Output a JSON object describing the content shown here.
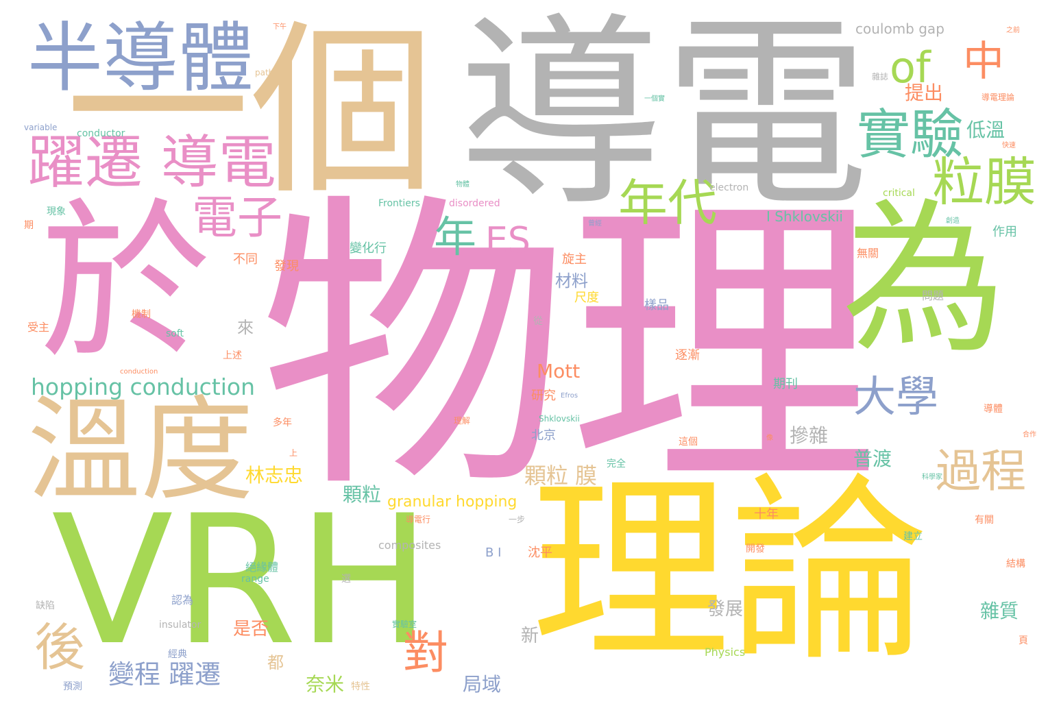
{
  "colors": {
    "background": "#ffffff",
    "pink": "#e98fc6",
    "green": "#a6d854",
    "yellow": "#ffd92f",
    "tan": "#e5c494",
    "gray": "#b3b3b3",
    "blue": "#8da0cb",
    "teal": "#66c2a5",
    "orange": "#fc8d62"
  },
  "words": [
    {
      "text": "物理",
      "color": "pink"
    },
    {
      "text": "導電",
      "color": "gray"
    },
    {
      "text": "一個",
      "color": "tan"
    },
    {
      "text": "VRH",
      "color": "green"
    },
    {
      "text": "於",
      "color": "pink"
    },
    {
      "text": "為",
      "color": "green"
    },
    {
      "text": "理論",
      "color": "yellow"
    },
    {
      "text": "溫度",
      "color": "tan"
    },
    {
      "text": "半導體",
      "color": "blue"
    },
    {
      "text": "躍遷 導電",
      "color": "pink"
    },
    {
      "text": "電子",
      "color": "pink"
    },
    {
      "text": "實驗",
      "color": "teal"
    },
    {
      "text": "粒膜",
      "color": "green"
    },
    {
      "text": "of",
      "color": "green"
    },
    {
      "text": "中",
      "color": "orange"
    },
    {
      "text": "年代",
      "color": "green"
    },
    {
      "text": "年",
      "color": "teal"
    },
    {
      "text": "ES",
      "color": "pink"
    },
    {
      "text": "大學",
      "color": "blue"
    },
    {
      "text": "過程",
      "color": "tan"
    },
    {
      "text": "後",
      "color": "tan"
    },
    {
      "text": "對",
      "color": "orange"
    },
    {
      "text": "變程 躍遷",
      "color": "blue"
    },
    {
      "text": "hopping conduction",
      "color": "teal"
    },
    {
      "text": "Mott",
      "color": "orange"
    },
    {
      "text": "顆粒 膜",
      "color": "tan"
    },
    {
      "text": "granular hopping",
      "color": "yellow"
    },
    {
      "text": "I Shklovskii",
      "color": "teal"
    },
    {
      "text": "coulomb gap",
      "color": "gray"
    },
    {
      "text": "提出",
      "color": "orange"
    },
    {
      "text": "低溫",
      "color": "teal"
    },
    {
      "text": "摻雜",
      "color": "gray"
    },
    {
      "text": "普渡",
      "color": "teal"
    },
    {
      "text": "林志忠",
      "color": "yellow"
    },
    {
      "text": "顆粒",
      "color": "teal"
    },
    {
      "text": "材料",
      "color": "blue"
    },
    {
      "text": "發展",
      "color": "gray"
    },
    {
      "text": "雜質",
      "color": "teal"
    },
    {
      "text": "奈米",
      "color": "green"
    },
    {
      "text": "局域",
      "color": "blue"
    },
    {
      "text": "新",
      "color": "gray"
    },
    {
      "text": "是否",
      "color": "orange"
    },
    {
      "text": "都",
      "color": "tan"
    },
    {
      "text": "來",
      "color": "gray"
    },
    {
      "text": "不同",
      "color": "orange"
    },
    {
      "text": "發現",
      "color": "orange"
    },
    {
      "text": "變化行",
      "color": "teal"
    },
    {
      "text": "旋主",
      "color": "orange"
    },
    {
      "text": "尺度",
      "color": "yellow"
    },
    {
      "text": "樣品",
      "color": "blue"
    },
    {
      "text": "作用",
      "color": "teal"
    },
    {
      "text": "無關",
      "color": "orange"
    },
    {
      "text": "問題",
      "color": "gray"
    },
    {
      "text": "逐漸",
      "color": "orange"
    },
    {
      "text": "期刊",
      "color": "teal"
    },
    {
      "text": "研究",
      "color": "orange"
    },
    {
      "text": "北京",
      "color": "blue"
    },
    {
      "text": "十年",
      "color": "orange"
    },
    {
      "text": "沈平",
      "color": "orange"
    },
    {
      "text": "B I",
      "color": "blue"
    },
    {
      "text": "絕緣體",
      "color": "teal"
    },
    {
      "text": "range",
      "color": "teal"
    },
    {
      "text": "insulator",
      "color": "gray"
    },
    {
      "text": "composites",
      "color": "gray"
    },
    {
      "text": "Physics",
      "color": "green"
    },
    {
      "text": "Frontiers",
      "color": "teal"
    },
    {
      "text": "disordered",
      "color": "pink"
    },
    {
      "text": "electron",
      "color": "gray"
    },
    {
      "text": "critical",
      "color": "green"
    },
    {
      "text": "conductor",
      "color": "teal"
    },
    {
      "text": "variable",
      "color": "blue"
    },
    {
      "text": "path",
      "color": "tan"
    },
    {
      "text": "soft",
      "color": "teal"
    },
    {
      "text": "conduction",
      "color": "orange"
    },
    {
      "text": "Shklovskii",
      "color": "teal"
    },
    {
      "text": "Efros",
      "color": "blue"
    },
    {
      "text": "受主",
      "color": "orange"
    },
    {
      "text": "機制",
      "color": "orange"
    },
    {
      "text": "上述",
      "color": "orange"
    },
    {
      "text": "多年",
      "color": "orange"
    },
    {
      "text": "認為",
      "color": "blue"
    },
    {
      "text": "經典",
      "color": "blue"
    },
    {
      "text": "預測",
      "color": "blue"
    },
    {
      "text": "缺陷",
      "color": "gray"
    },
    {
      "text": "現象",
      "color": "teal"
    },
    {
      "text": "期",
      "color": "orange"
    },
    {
      "text": "實驗室",
      "color": "teal"
    },
    {
      "text": "開發",
      "color": "orange"
    },
    {
      "text": "建立",
      "color": "teal"
    },
    {
      "text": "有關",
      "color": "orange"
    },
    {
      "text": "結構",
      "color": "orange"
    },
    {
      "text": "頁",
      "color": "orange"
    },
    {
      "text": "導電理論",
      "color": "orange"
    },
    {
      "text": "導體",
      "color": "orange"
    },
    {
      "text": "雜誌",
      "color": "gray"
    },
    {
      "text": "一步",
      "color": "gray"
    },
    {
      "text": "上",
      "color": "orange"
    },
    {
      "text": "導電行",
      "color": "orange"
    },
    {
      "text": "理解",
      "color": "orange"
    },
    {
      "text": "完全",
      "color": "teal"
    },
    {
      "text": "這個",
      "color": "orange"
    },
    {
      "text": "合作",
      "color": "orange"
    },
    {
      "text": "快速",
      "color": "orange"
    },
    {
      "text": "一個實",
      "color": "teal"
    },
    {
      "text": "物體",
      "color": "teal"
    },
    {
      "text": "像",
      "color": "orange"
    },
    {
      "text": "從",
      "color": "gray"
    },
    {
      "text": "選",
      "color": "gray"
    },
    {
      "text": "特性",
      "color": "tan"
    },
    {
      "text": "下午",
      "color": "orange"
    },
    {
      "text": "之前",
      "color": "orange"
    },
    {
      "text": "科學家",
      "color": "teal"
    },
    {
      "text": "曾經",
      "color": "blue"
    },
    {
      "text": "創造",
      "color": "teal"
    }
  ]
}
